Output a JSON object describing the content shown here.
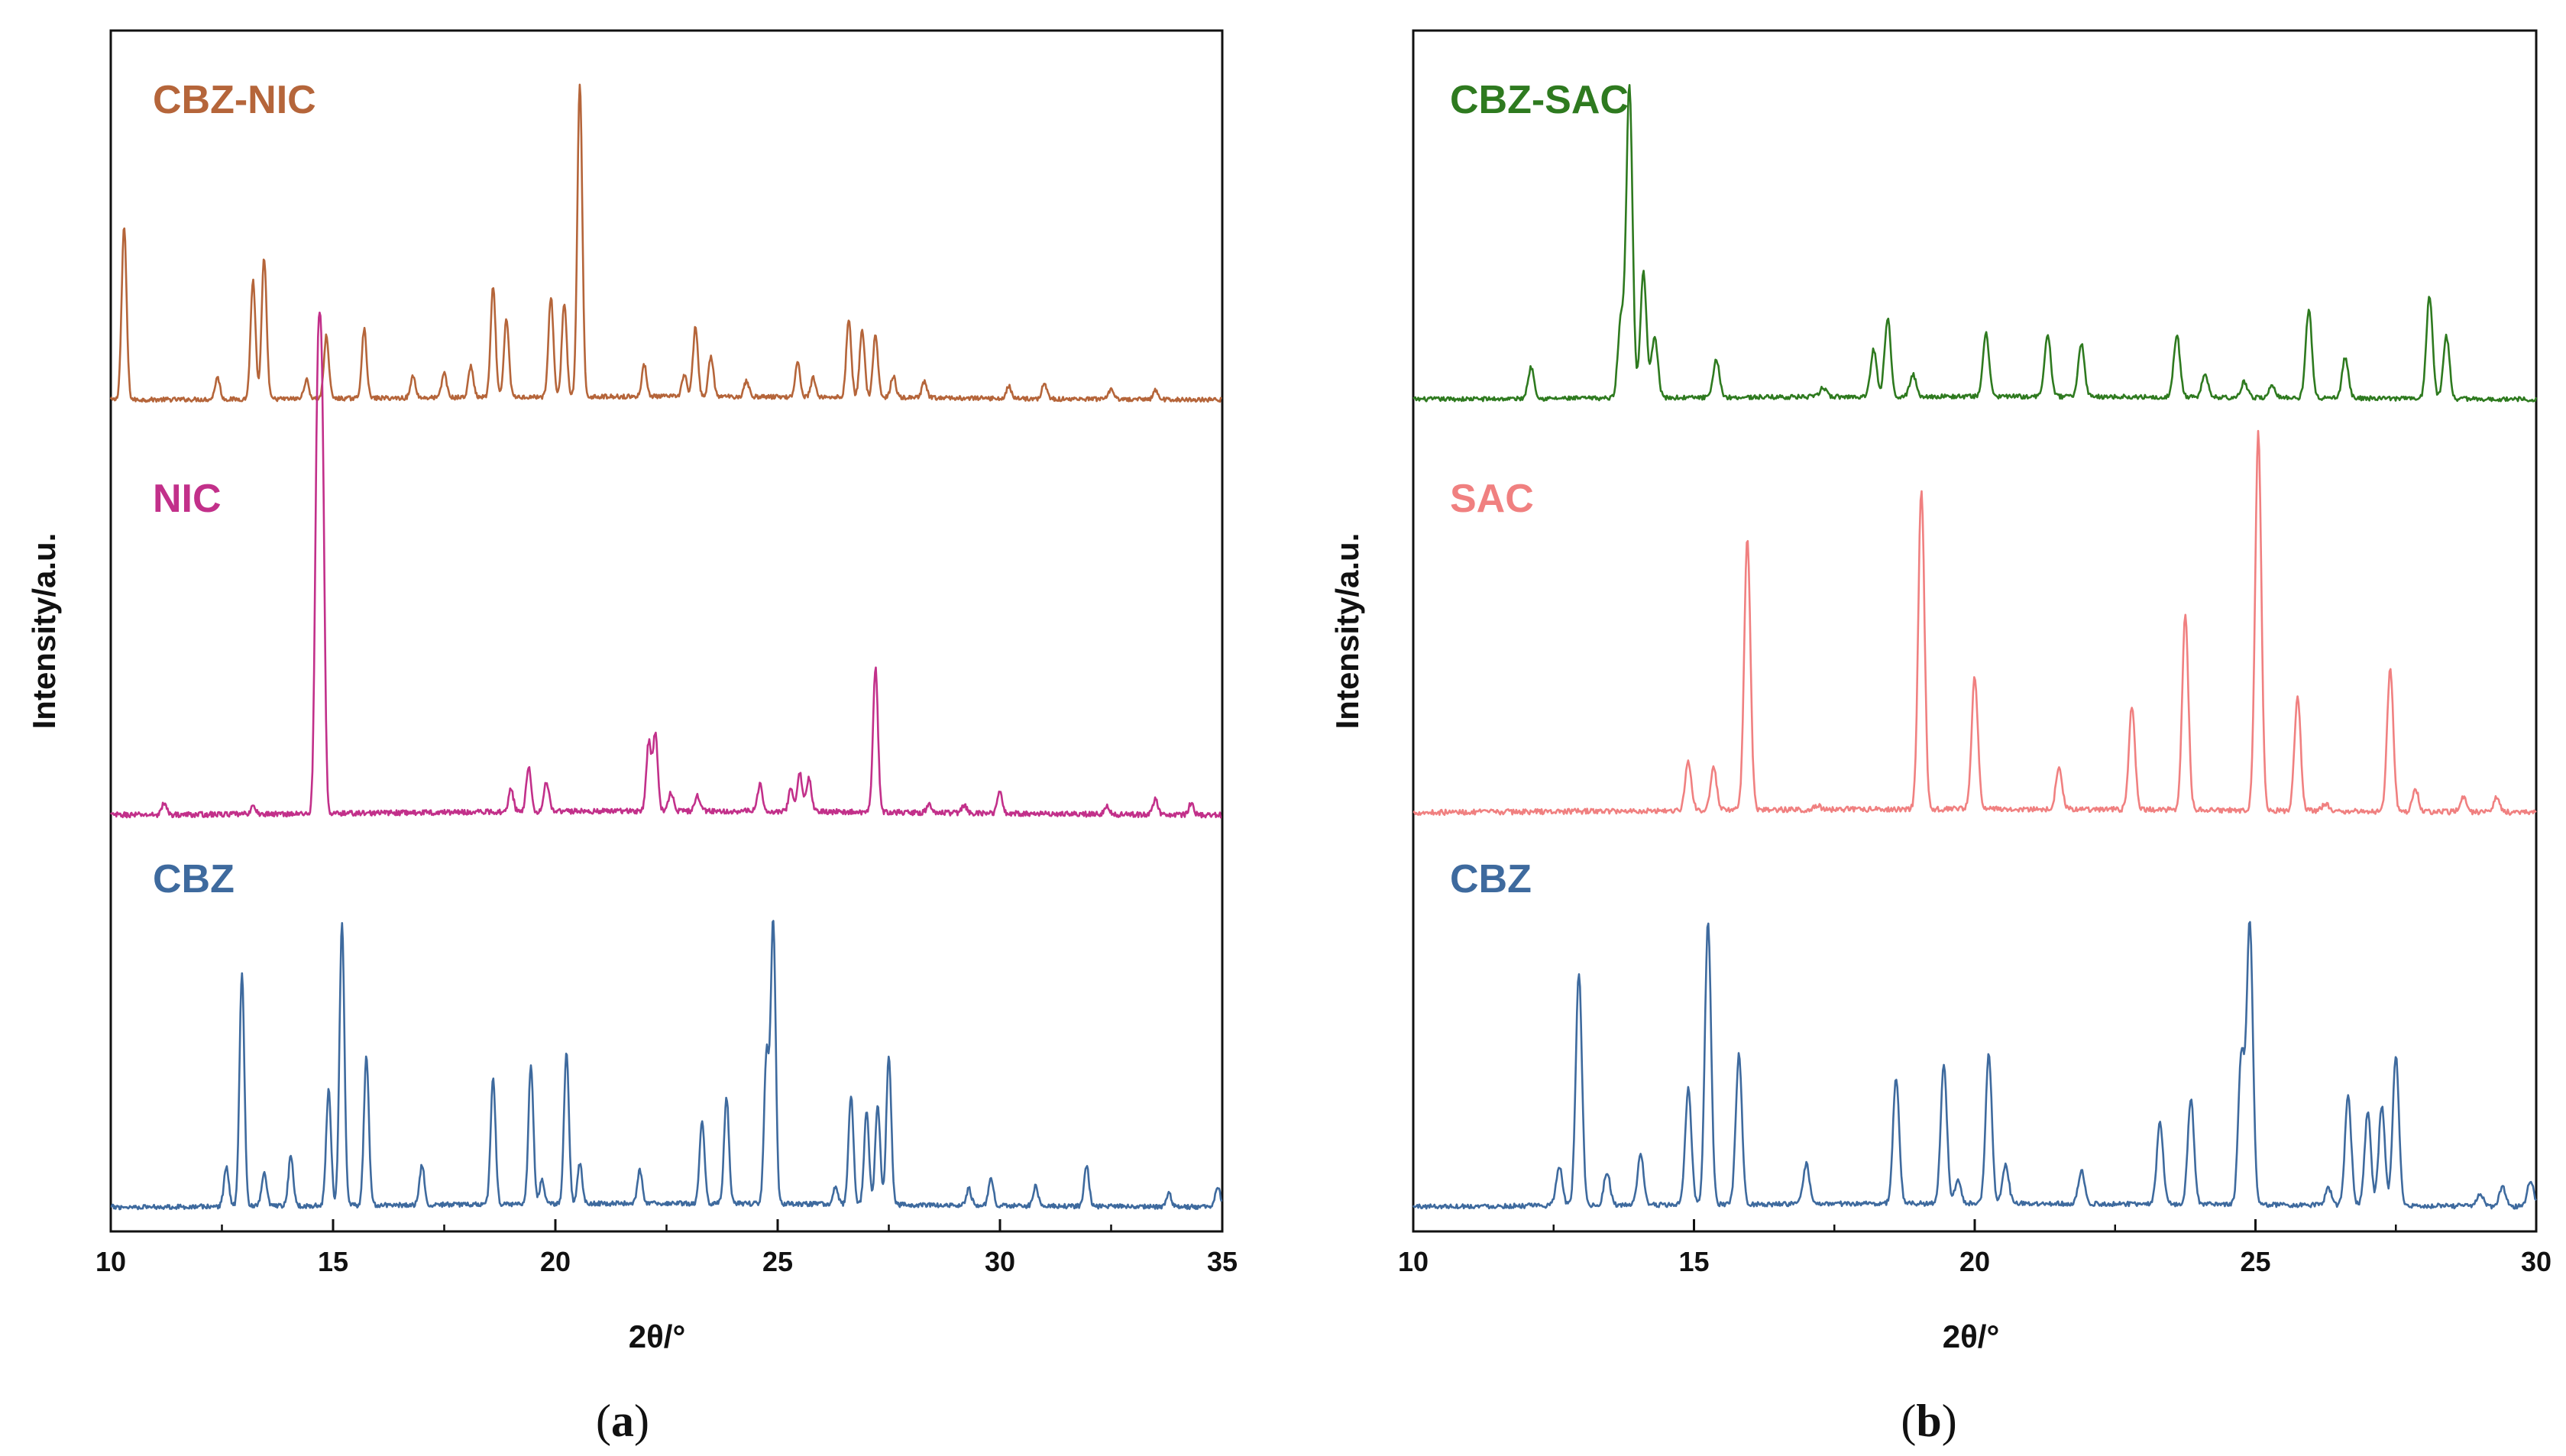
{
  "chart_data": [
    {
      "type": "line",
      "panel": "a",
      "caption": {
        "open": "(",
        "letter": "a",
        "close": ")"
      },
      "xlabel": "2θ/°",
      "ylabel": "Intensity/a.u.",
      "xlim": [
        10,
        35
      ],
      "xticks": [
        10,
        15,
        20,
        25,
        30,
        35
      ],
      "y_ticks_shown": false,
      "grid": false,
      "layout": "stacked (offset) traces",
      "series": [
        {
          "name": "CBZ-NIC",
          "color": "#b5653a",
          "stack_order": 3,
          "baseline": 0.01,
          "peaks": [
            [
              10.3,
              0.55
            ],
            [
              12.4,
              0.07
            ],
            [
              13.2,
              0.38
            ],
            [
              13.45,
              0.45
            ],
            [
              14.4,
              0.06
            ],
            [
              14.85,
              0.2
            ],
            [
              15.7,
              0.22
            ],
            [
              16.8,
              0.07
            ],
            [
              17.5,
              0.08
            ],
            [
              18.1,
              0.1
            ],
            [
              18.6,
              0.35
            ],
            [
              18.9,
              0.25
            ],
            [
              19.9,
              0.32
            ],
            [
              20.2,
              0.3
            ],
            [
              20.55,
              1.0
            ],
            [
              22.0,
              0.1
            ],
            [
              22.9,
              0.07
            ],
            [
              23.15,
              0.22
            ],
            [
              23.5,
              0.13
            ],
            [
              24.3,
              0.05
            ],
            [
              25.45,
              0.11
            ],
            [
              25.8,
              0.06
            ],
            [
              26.6,
              0.25
            ],
            [
              26.9,
              0.22
            ],
            [
              27.2,
              0.2
            ],
            [
              27.6,
              0.07
            ],
            [
              28.3,
              0.05
            ],
            [
              30.2,
              0.04
            ],
            [
              31.0,
              0.05
            ],
            [
              32.5,
              0.03
            ],
            [
              33.5,
              0.03
            ]
          ]
        },
        {
          "name": "NIC",
          "color": "#c2308a",
          "stack_order": 2,
          "baseline": 0.005,
          "peaks": [
            [
              11.2,
              0.03
            ],
            [
              13.2,
              0.02
            ],
            [
              14.65,
              1.0
            ],
            [
              14.75,
              1.0
            ],
            [
              19.0,
              0.06
            ],
            [
              19.4,
              0.12
            ],
            [
              19.8,
              0.08
            ],
            [
              22.1,
              0.18
            ],
            [
              22.25,
              0.2
            ],
            [
              22.6,
              0.05
            ],
            [
              23.2,
              0.04
            ],
            [
              24.6,
              0.07
            ],
            [
              25.3,
              0.06
            ],
            [
              25.5,
              0.1
            ],
            [
              25.7,
              0.09
            ],
            [
              27.2,
              0.38
            ],
            [
              28.4,
              0.02
            ],
            [
              29.2,
              0.02
            ],
            [
              30.0,
              0.06
            ],
            [
              32.4,
              0.02
            ],
            [
              33.5,
              0.04
            ],
            [
              34.3,
              0.03
            ]
          ]
        },
        {
          "name": "CBZ",
          "color": "#3e6a9e",
          "stack_order": 1,
          "baseline": 0.01,
          "peaks": [
            [
              12.6,
              0.12
            ],
            [
              12.95,
              0.7
            ],
            [
              13.45,
              0.1
            ],
            [
              14.05,
              0.15
            ],
            [
              14.9,
              0.35
            ],
            [
              15.2,
              0.85
            ],
            [
              15.75,
              0.45
            ],
            [
              17.0,
              0.12
            ],
            [
              18.6,
              0.38
            ],
            [
              19.45,
              0.42
            ],
            [
              19.7,
              0.07
            ],
            [
              20.25,
              0.45
            ],
            [
              20.55,
              0.12
            ],
            [
              21.9,
              0.1
            ],
            [
              23.3,
              0.25
            ],
            [
              23.85,
              0.32
            ],
            [
              24.75,
              0.45
            ],
            [
              24.9,
              0.85
            ],
            [
              26.3,
              0.05
            ],
            [
              26.65,
              0.33
            ],
            [
              27.0,
              0.28
            ],
            [
              27.25,
              0.3
            ],
            [
              27.5,
              0.45
            ],
            [
              29.3,
              0.05
            ],
            [
              29.8,
              0.08
            ],
            [
              30.8,
              0.06
            ],
            [
              31.95,
              0.12
            ],
            [
              33.8,
              0.04
            ],
            [
              34.9,
              0.06
            ]
          ]
        }
      ]
    },
    {
      "type": "line",
      "panel": "b",
      "caption": {
        "open": "(",
        "letter": "b",
        "close": ")"
      },
      "xlabel": "2θ/°",
      "ylabel": "Intensity/a.u.",
      "xlim": [
        10,
        30
      ],
      "xticks": [
        10,
        15,
        20,
        25,
        30
      ],
      "y_ticks_shown": false,
      "grid": false,
      "layout": "stacked (offset) traces",
      "series": [
        {
          "name": "CBZ-SAC",
          "color": "#2e7a1f",
          "stack_order": 3,
          "baseline": 0.01,
          "peaks": [
            [
              12.1,
              0.1
            ],
            [
              13.7,
              0.25
            ],
            [
              13.85,
              1.0
            ],
            [
              14.1,
              0.4
            ],
            [
              14.3,
              0.2
            ],
            [
              15.4,
              0.12
            ],
            [
              17.3,
              0.03
            ],
            [
              18.2,
              0.15
            ],
            [
              18.45,
              0.25
            ],
            [
              18.9,
              0.07
            ],
            [
              20.2,
              0.2
            ],
            [
              21.3,
              0.2
            ],
            [
              21.9,
              0.17
            ],
            [
              23.6,
              0.2
            ],
            [
              24.1,
              0.07
            ],
            [
              24.8,
              0.05
            ],
            [
              25.3,
              0.04
            ],
            [
              25.95,
              0.28
            ],
            [
              26.6,
              0.13
            ],
            [
              28.1,
              0.33
            ],
            [
              28.4,
              0.2
            ]
          ]
        },
        {
          "name": "SAC",
          "color": "#f08080",
          "stack_order": 2,
          "baseline": 0.01,
          "peaks": [
            [
              14.9,
              0.13
            ],
            [
              15.35,
              0.11
            ],
            [
              15.95,
              0.72
            ],
            [
              17.2,
              0.01
            ],
            [
              19.05,
              0.85
            ],
            [
              20.0,
              0.35
            ],
            [
              21.5,
              0.11
            ],
            [
              22.8,
              0.27
            ],
            [
              23.75,
              0.51
            ],
            [
              25.05,
              1.0
            ],
            [
              25.75,
              0.3
            ],
            [
              26.25,
              0.02
            ],
            [
              27.4,
              0.38
            ],
            [
              27.85,
              0.06
            ],
            [
              28.7,
              0.04
            ],
            [
              29.3,
              0.04
            ]
          ]
        },
        {
          "name": "CBZ",
          "color": "#3e6a9e",
          "stack_order": 1,
          "baseline": 0.01,
          "peaks": [
            [
              12.6,
              0.12
            ],
            [
              12.95,
              0.7
            ],
            [
              13.45,
              0.1
            ],
            [
              14.05,
              0.15
            ],
            [
              14.9,
              0.35
            ],
            [
              15.25,
              0.85
            ],
            [
              15.8,
              0.45
            ],
            [
              17.0,
              0.12
            ],
            [
              18.6,
              0.38
            ],
            [
              19.45,
              0.42
            ],
            [
              19.7,
              0.07
            ],
            [
              20.25,
              0.45
            ],
            [
              20.55,
              0.12
            ],
            [
              21.9,
              0.1
            ],
            [
              23.3,
              0.25
            ],
            [
              23.85,
              0.32
            ],
            [
              24.75,
              0.45
            ],
            [
              24.9,
              0.85
            ],
            [
              26.3,
              0.05
            ],
            [
              26.65,
              0.33
            ],
            [
              27.0,
              0.28
            ],
            [
              27.25,
              0.3
            ],
            [
              27.5,
              0.45
            ],
            [
              29.0,
              0.04
            ],
            [
              29.4,
              0.06
            ],
            [
              29.9,
              0.08
            ]
          ]
        }
      ]
    }
  ]
}
